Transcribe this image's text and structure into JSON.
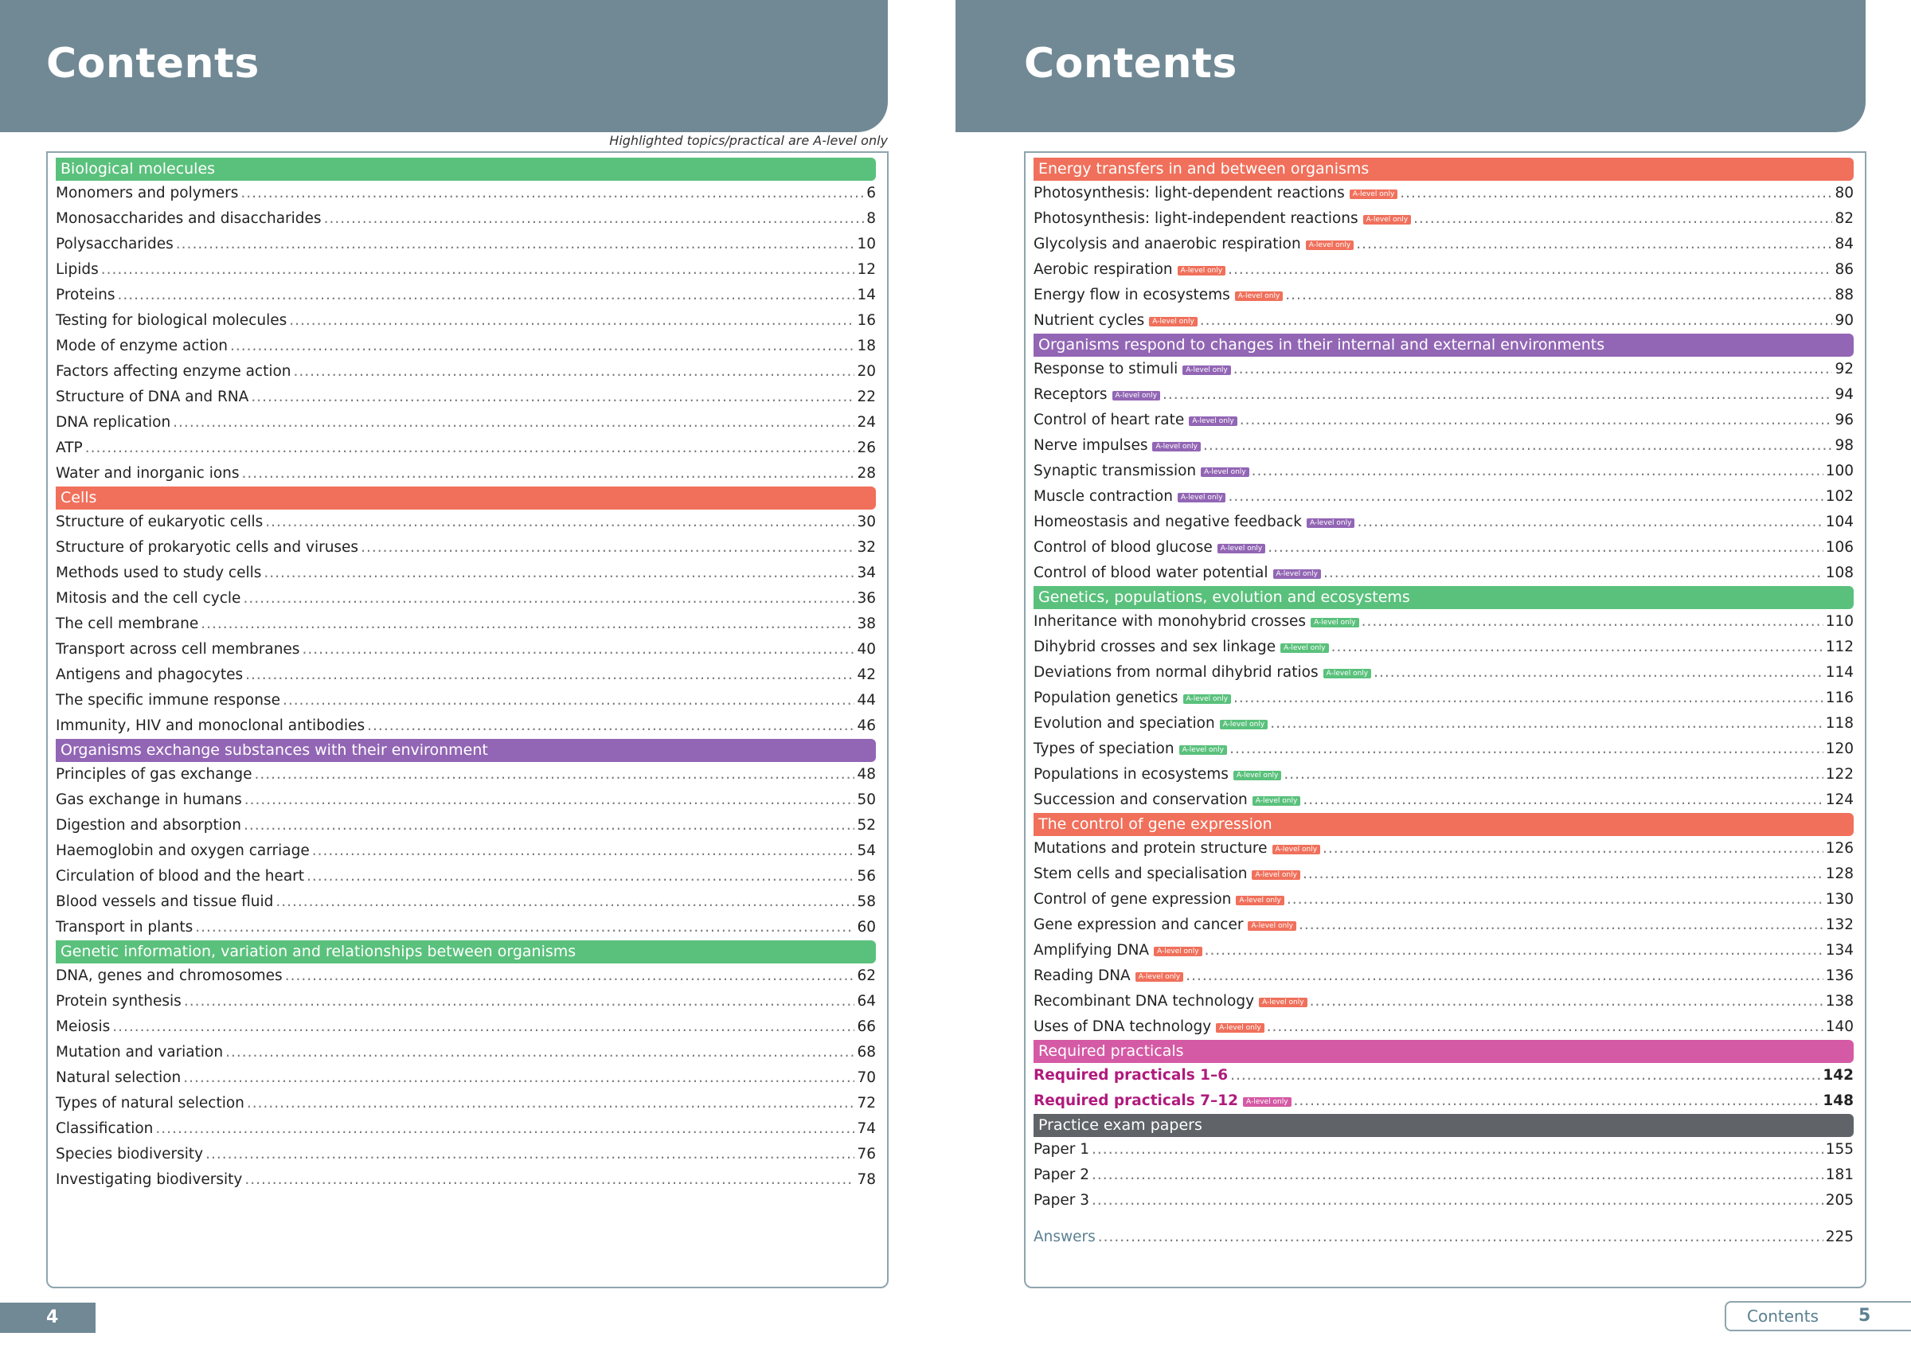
{
  "colors": {
    "header": "#708995",
    "green": "#5ac17c",
    "orange": "#f0705b",
    "purple": "#9266b4",
    "pink": "#d55aa5",
    "gray": "#606468",
    "required_text": "#b01a7d",
    "answers_text": "#5b8091"
  },
  "left": {
    "title": "Contents",
    "note": "Highlighted topics/practical are A-level only",
    "page_number": "4",
    "sections": [
      {
        "title": "Biological molecules",
        "color": "green",
        "items": [
          {
            "title": "Monomers and polymers",
            "page": "6"
          },
          {
            "title": "Monosaccharides and disaccharides",
            "page": "8"
          },
          {
            "title": "Polysaccharides",
            "page": "10"
          },
          {
            "title": "Lipids",
            "page": "12"
          },
          {
            "title": "Proteins",
            "page": "14"
          },
          {
            "title": "Testing for biological molecules",
            "page": "16"
          },
          {
            "title": "Mode of enzyme action",
            "page": "18"
          },
          {
            "title": "Factors affecting enzyme action",
            "page": "20"
          },
          {
            "title": "Structure of DNA and RNA",
            "page": "22"
          },
          {
            "title": "DNA replication",
            "page": "24"
          },
          {
            "title": "ATP",
            "page": "26"
          },
          {
            "title": "Water and inorganic ions",
            "page": "28"
          }
        ]
      },
      {
        "title": "Cells",
        "color": "orange",
        "items": [
          {
            "title": "Structure of eukaryotic cells",
            "page": "30"
          },
          {
            "title": "Structure of prokaryotic cells and viruses",
            "page": "32"
          },
          {
            "title": "Methods used to study cells",
            "page": "34"
          },
          {
            "title": "Mitosis and the cell cycle",
            "page": "36"
          },
          {
            "title": "The cell membrane",
            "page": "38"
          },
          {
            "title": "Transport across cell membranes",
            "page": "40"
          },
          {
            "title": "Antigens and phagocytes",
            "page": "42"
          },
          {
            "title": "The specific immune response",
            "page": "44"
          },
          {
            "title": "Immunity, HIV and monoclonal antibodies",
            "page": "46"
          }
        ]
      },
      {
        "title": "Organisms exchange substances with their environment",
        "color": "purple",
        "items": [
          {
            "title": "Principles of gas exchange",
            "page": "48"
          },
          {
            "title": "Gas exchange in humans",
            "page": "50"
          },
          {
            "title": "Digestion and absorption",
            "page": "52"
          },
          {
            "title": "Haemoglobin and oxygen carriage",
            "page": "54"
          },
          {
            "title": "Circulation of blood and the heart",
            "page": "56"
          },
          {
            "title": "Blood vessels and tissue fluid",
            "page": "58"
          },
          {
            "title": "Transport in plants",
            "page": "60"
          }
        ]
      },
      {
        "title": "Genetic information, variation and relationships between organisms",
        "color": "green",
        "items": [
          {
            "title": "DNA, genes and chromosomes",
            "page": "62"
          },
          {
            "title": "Protein synthesis",
            "page": "64"
          },
          {
            "title": "Meiosis",
            "page": "66"
          },
          {
            "title": "Mutation and variation",
            "page": "68"
          },
          {
            "title": "Natural selection",
            "page": "70"
          },
          {
            "title": "Types of natural selection",
            "page": "72"
          },
          {
            "title": "Classification",
            "page": "74"
          },
          {
            "title": "Species biodiversity",
            "page": "76"
          },
          {
            "title": "Investigating biodiversity",
            "page": "78"
          }
        ]
      }
    ]
  },
  "right": {
    "title": "Contents",
    "footer_label": "Contents",
    "page_number": "5",
    "badge_label": "A-level only",
    "sections": [
      {
        "title": "Energy transfers in and between organisms",
        "color": "orange",
        "items": [
          {
            "title": "Photosynthesis: light-dependent reactions",
            "page": "80",
            "badge": true
          },
          {
            "title": "Photosynthesis: light-independent reactions",
            "page": "82",
            "badge": true
          },
          {
            "title": "Glycolysis and anaerobic respiration",
            "page": "84",
            "badge": true
          },
          {
            "title": "Aerobic respiration",
            "page": "86",
            "badge": true
          },
          {
            "title": "Energy flow in ecosystems",
            "page": "88",
            "badge": true
          },
          {
            "title": "Nutrient cycles",
            "page": "90",
            "badge": true
          }
        ]
      },
      {
        "title": "Organisms respond to changes in their internal and external environments",
        "color": "purple",
        "items": [
          {
            "title": "Response to stimuli",
            "page": "92",
            "badge": true
          },
          {
            "title": "Receptors",
            "page": "94",
            "badge": true
          },
          {
            "title": "Control of heart rate",
            "page": "96",
            "badge": true
          },
          {
            "title": "Nerve impulses",
            "page": "98",
            "badge": true
          },
          {
            "title": "Synaptic transmission",
            "page": "100",
            "badge": true
          },
          {
            "title": "Muscle contraction",
            "page": "102",
            "badge": true
          },
          {
            "title": "Homeostasis and negative feedback",
            "page": "104",
            "badge": true
          },
          {
            "title": "Control of blood glucose",
            "page": "106",
            "badge": true
          },
          {
            "title": "Control of blood water potential",
            "page": "108",
            "badge": true
          }
        ]
      },
      {
        "title": "Genetics, populations, evolution and ecosystems",
        "color": "green",
        "items": [
          {
            "title": "Inheritance with monohybrid crosses",
            "page": "110",
            "badge": true
          },
          {
            "title": "Dihybrid crosses and sex linkage",
            "page": "112",
            "badge": true
          },
          {
            "title": "Deviations from normal dihybrid ratios",
            "page": "114",
            "badge": true
          },
          {
            "title": "Population genetics",
            "page": "116",
            "badge": true
          },
          {
            "title": "Evolution and speciation",
            "page": "118",
            "badge": true
          },
          {
            "title": "Types of speciation",
            "page": "120",
            "badge": true
          },
          {
            "title": "Populations in ecosystems",
            "page": "122",
            "badge": true
          },
          {
            "title": "Succession and conservation",
            "page": "124",
            "badge": true
          }
        ]
      },
      {
        "title": "The control of gene expression",
        "color": "orange",
        "items": [
          {
            "title": "Mutations and protein structure",
            "page": "126",
            "badge": true
          },
          {
            "title": "Stem cells and specialisation",
            "page": "128",
            "badge": true
          },
          {
            "title": "Control of gene expression",
            "page": "130",
            "badge": true
          },
          {
            "title": "Gene expression and cancer",
            "page": "132",
            "badge": true
          },
          {
            "title": "Amplifying DNA",
            "page": "134",
            "badge": true
          },
          {
            "title": "Reading DNA",
            "page": "136",
            "badge": true
          },
          {
            "title": "Recombinant DNA technology",
            "page": "138",
            "badge": true
          },
          {
            "title": "Uses of DNA technology",
            "page": "140",
            "badge": true
          }
        ]
      },
      {
        "title": "Required practicals",
        "color": "pink",
        "style": "bold",
        "items": [
          {
            "title": "Required practicals 1–6",
            "page": "142"
          },
          {
            "title": "Required practicals 7–12",
            "page": "148",
            "badge": true
          }
        ]
      },
      {
        "title": "Practice exam papers",
        "color": "gray",
        "items": [
          {
            "title": "Paper 1",
            "page": "155"
          },
          {
            "title": "Paper 2",
            "page": "181"
          },
          {
            "title": "Paper 3",
            "page": "205"
          }
        ]
      }
    ],
    "answers": {
      "title": "Answers",
      "page": "225"
    }
  }
}
